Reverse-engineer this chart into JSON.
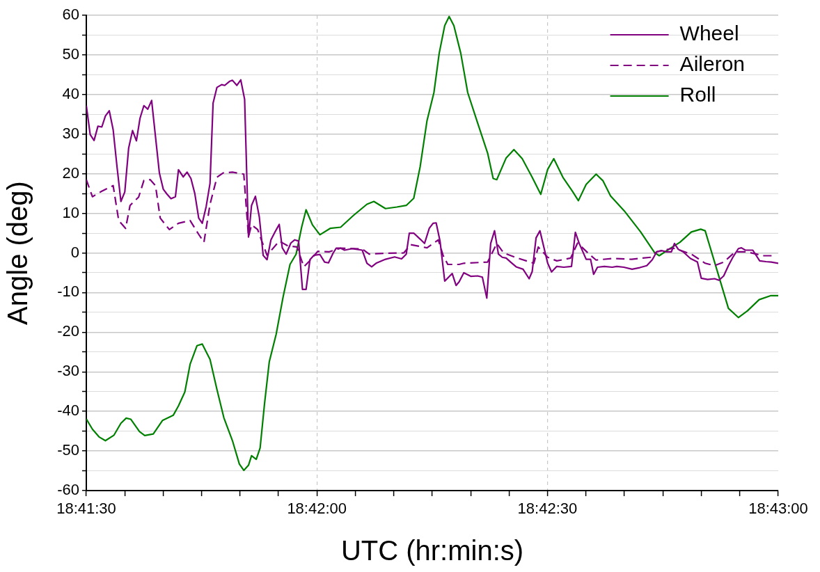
{
  "chart_data": {
    "type": "line",
    "xlabel": "UTC (hr:min:s)",
    "ylabel": "Angle (deg)",
    "xlim": [
      18.69167,
      18.71667
    ],
    "xticks": [
      {
        "value": 18.69167,
        "label": "18:41:30"
      },
      {
        "value": 18.69306,
        "label": null
      },
      {
        "value": 18.69444,
        "label": null
      },
      {
        "value": 18.69583,
        "label": null
      },
      {
        "value": 18.69722,
        "label": null
      },
      {
        "value": 18.69861,
        "label": null
      },
      {
        "value": 18.7,
        "label": "18:42:00"
      },
      {
        "value": 18.70139,
        "label": null
      },
      {
        "value": 18.70278,
        "label": null
      },
      {
        "value": 18.70417,
        "label": null
      },
      {
        "value": 18.70556,
        "label": null
      },
      {
        "value": 18.70694,
        "label": null
      },
      {
        "value": 18.70833,
        "label": "18:42:30"
      },
      {
        "value": 18.70972,
        "label": null
      },
      {
        "value": 18.71111,
        "label": null
      },
      {
        "value": 18.7125,
        "label": null
      },
      {
        "value": 18.71389,
        "label": null
      },
      {
        "value": 18.71528,
        "label": null
      },
      {
        "value": 18.71667,
        "label": "18:43:00"
      }
    ],
    "ylim": [
      -60,
      60
    ],
    "yticks": [
      -60,
      {
        "value": -55,
        "label": null
      },
      -50,
      {
        "value": -45,
        "label": null
      },
      -40,
      {
        "value": -35,
        "label": null
      },
      -30,
      {
        "value": -25,
        "label": null
      },
      -20,
      {
        "value": -15,
        "label": null
      },
      -10,
      {
        "value": -5,
        "label": null
      },
      0,
      {
        "value": 5,
        "label": null
      },
      10,
      {
        "value": 15,
        "label": null
      },
      20,
      {
        "value": 25,
        "label": null
      },
      30,
      {
        "value": 35,
        "label": null
      },
      40,
      {
        "value": 45,
        "label": null
      },
      50,
      {
        "value": 55,
        "label": null
      },
      60
    ],
    "grid": true,
    "legend": "top right",
    "marker": "none",
    "series": [
      {
        "name": "Wheel",
        "color": "#800080",
        "line_style": "solid",
        "x": [
          18.69167,
          18.69181,
          18.69195,
          18.69209,
          18.69223,
          18.69236,
          18.6925,
          18.69264,
          18.69278,
          18.69292,
          18.69306,
          18.6932,
          18.69334,
          18.69348,
          18.69361,
          18.69375,
          18.69389,
          18.69403,
          18.69417,
          18.69431,
          18.69445,
          18.69459,
          18.69473,
          18.69489,
          18.695,
          18.69517,
          18.69531,
          18.69545,
          18.69559,
          18.69573,
          18.69586,
          18.696,
          18.69614,
          18.69625,
          18.69639,
          18.69656,
          18.69667,
          18.69684,
          18.69695,
          18.69711,
          18.69725,
          18.69739,
          18.69753,
          18.69764,
          18.69778,
          18.69792,
          18.69806,
          18.6982,
          18.69834,
          18.69848,
          18.69864,
          18.69875,
          18.69889,
          18.69906,
          18.6992,
          18.69934,
          18.69948,
          18.69961,
          18.69975,
          18.69989,
          18.70011,
          18.70028,
          18.70042,
          18.70059,
          18.7007,
          18.70086,
          18.701,
          18.70128,
          18.70164,
          18.70181,
          18.70198,
          18.70214,
          18.70248,
          18.70281,
          18.70306,
          18.70323,
          18.70334,
          18.7035,
          18.70373,
          18.70389,
          18.70406,
          18.7042,
          18.70431,
          18.70445,
          18.70462,
          18.70489,
          18.70503,
          18.70514,
          18.70531,
          18.70556,
          18.70581,
          18.70598,
          18.70614,
          18.70628,
          18.70642,
          18.70656,
          18.7067,
          18.70684,
          18.707,
          18.7072,
          18.70745,
          18.70767,
          18.70778,
          18.70792,
          18.70806,
          18.70834,
          18.70848,
          18.70867,
          18.70892,
          18.7092,
          18.70934,
          18.70948,
          18.70973,
          18.70989,
          18.71,
          18.71014,
          18.71039,
          18.71067,
          18.71084,
          18.71109,
          18.71139,
          18.71167,
          18.71192,
          18.71212,
          18.71228,
          18.71245,
          18.71262,
          18.71281,
          18.71292,
          18.71306,
          18.71323,
          18.7135,
          18.71375,
          18.71389,
          18.71412,
          18.71437,
          18.71453,
          18.7147,
          18.71487,
          18.71503,
          18.71523,
          18.71534,
          18.71548,
          18.71575,
          18.716,
          18.71623,
          18.71642,
          18.71667
        ],
        "values": [
          37.2,
          29.9,
          28.4,
          32.0,
          31.8,
          34.6,
          35.9,
          31.1,
          21.7,
          13.0,
          15.4,
          26.5,
          30.9,
          28.3,
          34.0,
          37.2,
          36.3,
          38.5,
          29.3,
          20.2,
          16.1,
          14.8,
          13.7,
          14.2,
          21.0,
          19.2,
          20.4,
          18.8,
          15.0,
          8.8,
          7.5,
          11.7,
          17.6,
          37.8,
          41.8,
          42.5,
          42.3,
          43.3,
          43.6,
          42.3,
          43.7,
          38.8,
          4.0,
          12.0,
          14.3,
          9.1,
          -0.6,
          -1.7,
          3.3,
          5.2,
          7.2,
          1.3,
          -0.3,
          2.5,
          3.3,
          3.0,
          -9.2,
          -9.2,
          -1.7,
          -0.6,
          -0.4,
          -2.3,
          -2.5,
          0,
          1.2,
          1.2,
          0.7,
          1.1,
          0.7,
          -2.6,
          -3.5,
          -2.6,
          -1.6,
          -1.0,
          -1.5,
          -0.3,
          5.0,
          5.0,
          3.5,
          2.4,
          6.2,
          7.5,
          7.6,
          3.0,
          -7.1,
          -5.2,
          -8.2,
          -7.3,
          -5.0,
          -5.9,
          -5.8,
          -6.1,
          -11.4,
          2.4,
          5.6,
          -0.3,
          -1.1,
          -1.3,
          -2.3,
          -3.5,
          -4.1,
          -6.5,
          -4.7,
          3.8,
          5.6,
          -2.6,
          -4.8,
          -3.4,
          -3.6,
          -3.4,
          5.2,
          2.4,
          -1.6,
          -1.6,
          -5.4,
          -3.6,
          -3.4,
          -3.6,
          -3.4,
          -3.6,
          -4.1,
          -3.7,
          -3.2,
          -1.7,
          0.3,
          0.6,
          0.3,
          0.3,
          2.4,
          0.9,
          0.3,
          -1.4,
          -2.3,
          -6.4,
          -6.7,
          -6.5,
          -6.9,
          -5.8,
          -3.2,
          -1.1,
          1.1,
          1.3,
          0.7,
          0.7,
          -2.0,
          -2.2,
          -2.3,
          -2.6
        ]
      },
      {
        "name": "Aileron",
        "color": "#800080",
        "line_style": "dashed",
        "x": [
          18.69167,
          18.69189,
          18.69223,
          18.69264,
          18.69284,
          18.69309,
          18.69325,
          18.69356,
          18.69375,
          18.69398,
          18.69417,
          18.69434,
          18.69467,
          18.695,
          18.69542,
          18.69573,
          18.69592,
          18.69614,
          18.69639,
          18.69661,
          18.69695,
          18.69736,
          18.69753,
          18.69764,
          18.69786,
          18.6982,
          18.69864,
          18.69895,
          18.69928,
          18.69953,
          18.69978,
          18.70003,
          18.70045,
          18.70086,
          18.70164,
          18.70189,
          18.70239,
          18.70314,
          18.70339,
          18.70398,
          18.70439,
          18.70456,
          18.70473,
          18.70514,
          18.70531,
          18.70617,
          18.7065,
          18.70675,
          18.70717,
          18.70784,
          18.708,
          18.70834,
          18.70867,
          18.70917,
          18.70942,
          18.70984,
          18.71009,
          18.71067,
          18.71137,
          18.71206,
          18.71228,
          18.71287,
          18.71303,
          18.71353,
          18.71403,
          18.71437,
          18.7147,
          18.71512,
          18.71553,
          18.71612,
          18.71645
        ],
        "values": [
          18.5,
          14.2,
          15.6,
          17.0,
          8.2,
          6.2,
          12.0,
          14.1,
          18.3,
          18.5,
          17.0,
          8.8,
          5.9,
          7.5,
          8.2,
          4.7,
          2.7,
          12.3,
          19.1,
          20.2,
          20.4,
          19.9,
          4.1,
          7.1,
          5.9,
          -0.6,
          3.0,
          1.8,
          1.5,
          -3.5,
          -1.7,
          0.4,
          0.3,
          1.2,
          1.0,
          -0.3,
          -0.1,
          0,
          2.1,
          1.3,
          3.3,
          -0.6,
          -2.9,
          -2.9,
          -2.6,
          -2.3,
          2.4,
          0,
          -1.1,
          -2.6,
          1.5,
          -1.1,
          -2.0,
          -1.3,
          2.5,
          -0.3,
          -1.8,
          -1.4,
          -1.6,
          -1.1,
          0.3,
          1.2,
          0.9,
          -0.3,
          -2.6,
          -3.2,
          -2.3,
          0.3,
          0.3,
          -0.7,
          -0.7
        ]
      },
      {
        "name": "Roll",
        "color": "#008000",
        "line_style": "solid",
        "x": [
          18.69167,
          18.69189,
          18.69214,
          18.69236,
          18.69267,
          18.69292,
          18.69311,
          18.69328,
          18.69359,
          18.69378,
          18.69409,
          18.69442,
          18.69481,
          18.695,
          18.69523,
          18.69542,
          18.69567,
          18.69586,
          18.69614,
          18.69639,
          18.69664,
          18.69695,
          18.6972,
          18.69736,
          18.69753,
          18.69764,
          18.69781,
          18.69795,
          18.69811,
          18.69828,
          18.69853,
          18.69878,
          18.69903,
          18.69925,
          18.69945,
          18.69961,
          18.69984,
          18.70011,
          18.70048,
          18.70086,
          18.70131,
          18.70181,
          18.70206,
          18.70248,
          18.70289,
          18.70323,
          18.7035,
          18.70373,
          18.70398,
          18.70423,
          18.70442,
          18.70462,
          18.70478,
          18.70495,
          18.7052,
          18.70545,
          18.70581,
          18.70617,
          18.70637,
          18.7065,
          18.70684,
          18.70712,
          18.70742,
          18.70778,
          18.70809,
          18.70834,
          18.70856,
          18.70889,
          18.70923,
          18.70945,
          18.70973,
          18.71009,
          18.71034,
          18.71061,
          18.71111,
          18.7117,
          18.7122,
          18.71237,
          18.71278,
          18.71312,
          18.71353,
          18.71387,
          18.71403,
          18.71437,
          18.71487,
          18.71523,
          18.71556,
          18.71598,
          18.71639,
          18.71667
        ],
        "values": [
          -41.9,
          -44.5,
          -46.5,
          -47.4,
          -46.0,
          -43.0,
          -41.7,
          -42.0,
          -45.1,
          -46.1,
          -45.7,
          -42.3,
          -41.0,
          -38.6,
          -35.1,
          -28.1,
          -23.4,
          -23.0,
          -26.9,
          -34.5,
          -41.6,
          -47.4,
          -53.3,
          -54.9,
          -53.6,
          -51.2,
          -52.1,
          -49.2,
          -38.0,
          -27.5,
          -20.5,
          -11.1,
          -2.9,
          -0.3,
          6.5,
          10.9,
          7.1,
          4.6,
          6.2,
          6.5,
          9.4,
          12.3,
          13.0,
          11.2,
          11.6,
          12.0,
          13.8,
          21.7,
          33.4,
          40.5,
          50.4,
          57.4,
          59.7,
          57.4,
          50.4,
          40.5,
          32.8,
          25.2,
          18.8,
          18.5,
          24.0,
          26.1,
          23.8,
          19.1,
          14.8,
          21.1,
          23.8,
          19.1,
          15.6,
          13.2,
          17.3,
          19.9,
          18.2,
          14.4,
          10.6,
          5.3,
          0.1,
          -0.7,
          1.2,
          2.7,
          5.3,
          6.0,
          5.6,
          -2.3,
          -14.0,
          -16.3,
          -14.6,
          -11.8,
          -10.8,
          -10.8
        ]
      }
    ]
  }
}
